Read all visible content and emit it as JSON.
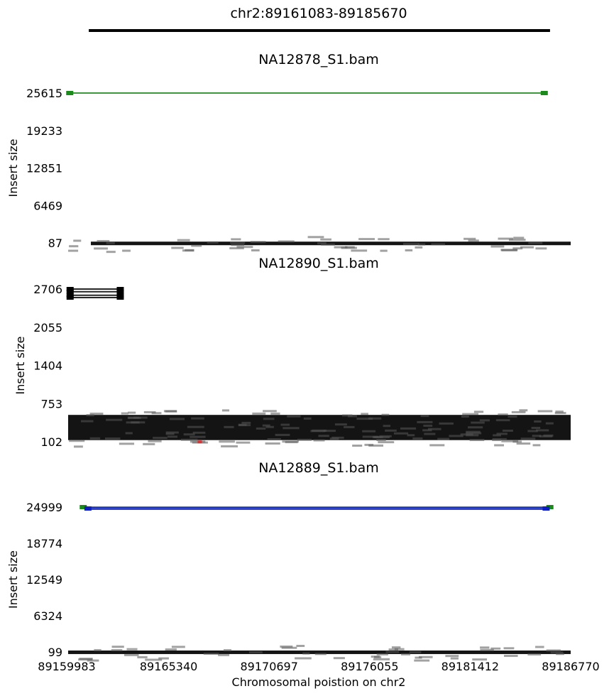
{
  "title": "chr2:89161083-89185670",
  "xlabel": "Chromosomal poistion on chr2",
  "ylabel": "Insert size",
  "xticks": [
    "89159983",
    "89165340",
    "89170697",
    "89176055",
    "89181412",
    "89186770"
  ],
  "colors": {
    "normal": "#000000",
    "green": "#1a8a1a",
    "blue": "#1020c0",
    "red": "#e03030",
    "region": "#000000"
  },
  "chart_data": [
    {
      "type": "scatter",
      "title": "NA12878_S1.bam",
      "xlabel": "",
      "ylabel": "Insert size",
      "xlim": [
        89159983,
        89186770
      ],
      "ylim": [
        87,
        25615
      ],
      "yticks": [
        "25615",
        "19233",
        "12851",
        "6469",
        "87"
      ],
      "region": [
        89161083,
        89185670
      ],
      "series": [
        {
          "color": "green",
          "pairs": [
            [
              89160030,
              89185400,
              25615
            ]
          ]
        },
        {
          "color": "normal",
          "band": {
            "x": [
              89159983,
              89186770
            ],
            "y": [
              87,
              300
            ],
            "note_color": "black"
          }
        }
      ]
    },
    {
      "type": "scatter",
      "title": "NA12890_S1.bam",
      "xlabel": "",
      "ylabel": "Insert size",
      "xlim": [
        89159983,
        89186770
      ],
      "ylim": [
        102,
        2706
      ],
      "yticks": [
        "2706",
        "2055",
        "1404",
        "753",
        "102"
      ],
      "series": [
        {
          "color": "normal",
          "pairs": [
            [
              89160050,
              89162800,
              2706
            ],
            [
              89160050,
              89162800,
              2660
            ],
            [
              89160050,
              89162800,
              2600
            ],
            [
              89160050,
              89162800,
              2560
            ]
          ]
        },
        {
          "color": "normal",
          "band": {
            "x": [
              89159983,
              89186770
            ],
            "y": [
              130,
              560
            ]
          }
        },
        {
          "color": "red",
          "points": [
            [
              89167000,
              100
            ]
          ]
        }
      ]
    },
    {
      "type": "scatter",
      "title": "NA12889_S1.bam",
      "xlabel": "Chromosomal poistion on chr2",
      "ylabel": "Insert size",
      "xlim": [
        89159983,
        89186770
      ],
      "ylim": [
        99,
        24999
      ],
      "yticks": [
        "24999",
        "18774",
        "12549",
        "6324",
        "99"
      ],
      "series": [
        {
          "color": "green",
          "pairs": [
            [
              89160750,
              89185700,
              24999
            ]
          ]
        },
        {
          "color": "blue",
          "pairs": [
            [
              89161000,
              89185500,
              24999
            ]
          ]
        },
        {
          "color": "normal",
          "band": {
            "x": [
              89159983,
              89186770
            ],
            "y": [
              99,
              350
            ]
          }
        }
      ]
    }
  ]
}
